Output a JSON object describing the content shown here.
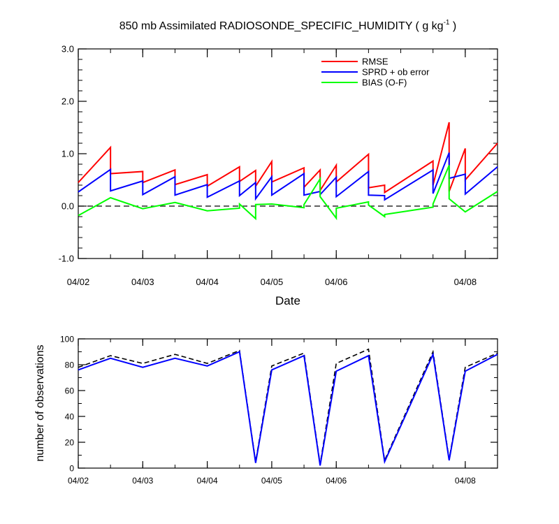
{
  "title": {
    "main": "850 mb Assimilated RADIOSONDE_SPECIFIC_HUMIDITY ( g kg",
    "sup": "-1",
    "close": " )"
  },
  "chart_data": [
    {
      "type": "line",
      "title": "850 mb Assimilated RADIOSONDE_SPECIFIC_HUMIDITY ( g kg-1 )",
      "xlabel": "Date",
      "ylabel": "",
      "xlim": [
        0,
        6.5
      ],
      "ylim": [
        -1.0,
        3.0
      ],
      "y_ticks": [
        -1.0,
        0.0,
        1.0,
        2.0,
        3.0
      ],
      "y_tick_labels": [
        "-1.0",
        "0.0",
        "1.0",
        "2.0",
        "3.0"
      ],
      "x_ticks": [
        0,
        1,
        2,
        3,
        4,
        6
      ],
      "x_tick_labels": [
        "04/02",
        "04/03",
        "04/04",
        "04/05",
        "04/06",
        "04/08"
      ],
      "x_minor_step": 0.5,
      "y_minor_step": 0.2,
      "reference_line": {
        "y": 0.0,
        "style": "dashed"
      },
      "legend": {
        "position": "top-right",
        "entries": [
          {
            "label": "RMSE",
            "color": "#ff0000"
          },
          {
            "label": "SPRD + ob error",
            "color": "#0000ff"
          },
          {
            "label": "BIAS (O-F)",
            "color": "#00ff00"
          }
        ]
      },
      "series": [
        {
          "name": "RMSE",
          "color": "#ff0000",
          "x": [
            0,
            0.5,
            0.5,
            1,
            1,
            1.5,
            1.5,
            2,
            2,
            2.5,
            2.5,
            2.75,
            2.75,
            3,
            3,
            3.5,
            3.5,
            3.75,
            3.75,
            4,
            4,
            4.5,
            4.5,
            4.75,
            4.75,
            5.5,
            5.5,
            5.75,
            5.75,
            6,
            6,
            6.5
          ],
          "y": [
            0.45,
            1.12,
            0.62,
            0.66,
            0.45,
            0.69,
            0.41,
            0.6,
            0.38,
            0.75,
            0.47,
            0.68,
            0.38,
            0.85,
            0.46,
            0.73,
            0.36,
            0.69,
            0.3,
            0.78,
            0.46,
            0.99,
            0.35,
            0.4,
            0.26,
            0.86,
            0.4,
            1.6,
            0.28,
            1.1,
            0.5,
            1.2
          ]
        },
        {
          "name": "SPRD + ob error",
          "color": "#0000ff",
          "x": [
            0,
            0.5,
            0.5,
            1,
            1,
            1.5,
            1.5,
            2,
            2,
            2.5,
            2.5,
            2.75,
            2.75,
            3,
            3,
            3.5,
            3.5,
            3.75,
            3.75,
            4,
            4,
            4.5,
            4.5,
            4.75,
            4.75,
            5.5,
            5.5,
            5.75,
            5.75,
            6,
            6,
            6.5
          ],
          "y": [
            0.27,
            0.7,
            0.29,
            0.48,
            0.22,
            0.56,
            0.21,
            0.41,
            0.17,
            0.48,
            0.2,
            0.45,
            0.14,
            0.56,
            0.21,
            0.62,
            0.21,
            0.28,
            0.22,
            0.55,
            0.18,
            0.66,
            0.21,
            0.2,
            0.12,
            0.69,
            0.24,
            1.02,
            0.53,
            0.61,
            0.23,
            0.75
          ]
        },
        {
          "name": "BIAS (O-F)",
          "color": "#00ff00",
          "x": [
            0,
            0.5,
            1,
            1.5,
            2,
            2.5,
            2.5,
            2.75,
            2.75,
            3,
            3.5,
            3.5,
            3.75,
            3.75,
            4,
            4,
            4.5,
            4.5,
            4.75,
            4.75,
            5.5,
            5.5,
            5.75,
            5.75,
            6,
            6.5
          ],
          "y": [
            -0.18,
            0.16,
            -0.05,
            0.07,
            -0.09,
            -0.04,
            0.04,
            -0.24,
            0.03,
            0.04,
            -0.03,
            0.03,
            0.52,
            0.18,
            -0.23,
            -0.04,
            0.08,
            0.02,
            -0.2,
            -0.16,
            -0.02,
            0.04,
            0.78,
            0.14,
            -0.11,
            0.28
          ]
        }
      ]
    },
    {
      "type": "line",
      "title": "",
      "xlabel": "",
      "ylabel": "number of observations",
      "xlim": [
        0,
        6.5
      ],
      "ylim": [
        0,
        100
      ],
      "y_ticks": [
        0,
        20,
        40,
        60,
        80,
        100
      ],
      "y_tick_labels": [
        "0",
        "20",
        "40",
        "60",
        "80",
        "100"
      ],
      "x_ticks": [
        0,
        1,
        2,
        3,
        4,
        6
      ],
      "x_tick_labels": [
        "04/02",
        "04/03",
        "04/04",
        "04/05",
        "04/06",
        "04/08"
      ],
      "x_minor_step": 0.5,
      "y_minor_step": 10,
      "series": [
        {
          "name": "dashed",
          "color": "#000000",
          "style": "dashed",
          "x": [
            0,
            0.5,
            1,
            1.5,
            2,
            2.5,
            2.75,
            3,
            3.5,
            3.75,
            4,
            4.5,
            4.75,
            5.5,
            5.75,
            6,
            6.5
          ],
          "y": [
            78,
            87,
            81,
            88,
            81,
            91,
            5,
            79,
            89,
            3,
            81,
            92,
            6,
            90,
            7,
            78,
            89
          ]
        },
        {
          "name": "solid",
          "color": "#0000ff",
          "style": "solid",
          "x": [
            0,
            0.5,
            1,
            1.5,
            2,
            2.5,
            2.75,
            3,
            3.5,
            3.75,
            4,
            4.5,
            4.75,
            5.5,
            5.75,
            6,
            6.5
          ],
          "y": [
            76,
            85,
            78,
            85,
            79,
            90,
            4,
            76,
            87,
            2,
            75,
            87,
            5,
            88,
            6,
            75,
            88
          ]
        }
      ]
    }
  ]
}
